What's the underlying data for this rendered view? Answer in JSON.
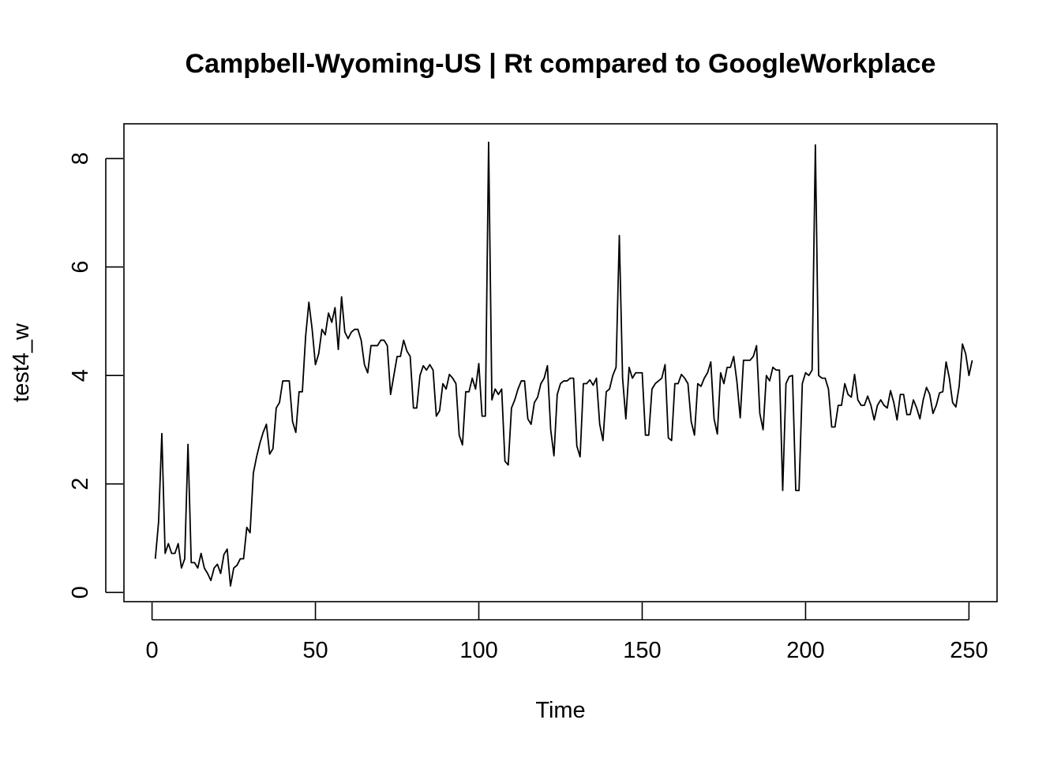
{
  "chart_data": {
    "type": "line",
    "title": "Campbell-Wyoming-US | Rt compared to GoogleWorkplace",
    "xlabel": "Time",
    "ylabel": "test4_w",
    "xlim": [
      -8.6,
      258.6
    ],
    "ylim": [
      -0.17,
      8.64
    ],
    "x_ticks": [
      0,
      50,
      100,
      150,
      200,
      250
    ],
    "y_ticks": [
      0,
      2,
      4,
      6,
      8
    ],
    "grid": false,
    "legend": "none",
    "series": [
      {
        "x_start": 1,
        "values": [
          0.62,
          1.3,
          2.93,
          0.72,
          0.9,
          0.72,
          0.72,
          0.9,
          0.45,
          0.62,
          2.73,
          0.55,
          0.55,
          0.45,
          0.72,
          0.45,
          0.35,
          0.22,
          0.45,
          0.52,
          0.35,
          0.7,
          0.8,
          0.12,
          0.45,
          0.5,
          0.62,
          0.62,
          1.2,
          1.1,
          2.2,
          2.5,
          2.75,
          2.95,
          3.1,
          2.55,
          2.65,
          3.4,
          3.5,
          3.9,
          3.9,
          3.9,
          3.15,
          2.95,
          3.7,
          3.7,
          4.72,
          5.35,
          4.85,
          4.2,
          4.4,
          4.85,
          4.75,
          5.15,
          4.98,
          5.25,
          4.48,
          5.45,
          4.8,
          4.68,
          4.8,
          4.85,
          4.85,
          4.65,
          4.2,
          4.05,
          4.55,
          4.55,
          4.55,
          4.65,
          4.65,
          4.55,
          3.65,
          4.0,
          4.35,
          4.35,
          4.65,
          4.45,
          4.35,
          3.4,
          3.4,
          4.0,
          4.18,
          4.1,
          4.2,
          4.1,
          3.25,
          3.35,
          3.85,
          3.75,
          4.02,
          3.95,
          3.85,
          2.9,
          2.72,
          3.7,
          3.7,
          3.95,
          3.75,
          4.22,
          3.25,
          3.25,
          8.3,
          3.55,
          3.75,
          3.65,
          3.75,
          2.42,
          2.35,
          3.4,
          3.55,
          3.75,
          3.9,
          3.9,
          3.2,
          3.1,
          3.5,
          3.6,
          3.85,
          3.95,
          4.18,
          3.0,
          2.52,
          3.65,
          3.85,
          3.9,
          3.9,
          3.95,
          3.95,
          2.7,
          2.5,
          3.85,
          3.85,
          3.92,
          3.82,
          3.95,
          3.1,
          2.8,
          3.7,
          3.75,
          4.0,
          4.15,
          6.58,
          3.95,
          3.2,
          4.15,
          3.95,
          4.05,
          4.05,
          4.05,
          2.9,
          2.9,
          3.75,
          3.85,
          3.9,
          3.95,
          4.2,
          2.85,
          2.8,
          3.85,
          3.85,
          4.02,
          3.95,
          3.85,
          3.15,
          2.9,
          3.85,
          3.8,
          3.95,
          4.05,
          4.25,
          3.2,
          2.92,
          4.05,
          3.85,
          4.15,
          4.15,
          4.35,
          3.88,
          3.22,
          4.28,
          4.28,
          4.28,
          4.35,
          4.55,
          3.3,
          3.0,
          4.0,
          3.9,
          4.15,
          4.1,
          4.1,
          1.88,
          3.85,
          3.98,
          4.0,
          1.88,
          1.88,
          3.85,
          4.05,
          4.0,
          4.1,
          8.25,
          4.0,
          3.95,
          3.95,
          3.75,
          3.05,
          3.05,
          3.45,
          3.45,
          3.85,
          3.65,
          3.6,
          4.02,
          3.55,
          3.45,
          3.45,
          3.62,
          3.45,
          3.18,
          3.45,
          3.55,
          3.45,
          3.4,
          3.72,
          3.5,
          3.18,
          3.65,
          3.65,
          3.28,
          3.28,
          3.55,
          3.4,
          3.2,
          3.55,
          3.78,
          3.65,
          3.3,
          3.45,
          3.68,
          3.7,
          4.25,
          3.95,
          3.5,
          3.42,
          3.8,
          4.58,
          4.4,
          4.0,
          4.28
        ]
      }
    ]
  }
}
